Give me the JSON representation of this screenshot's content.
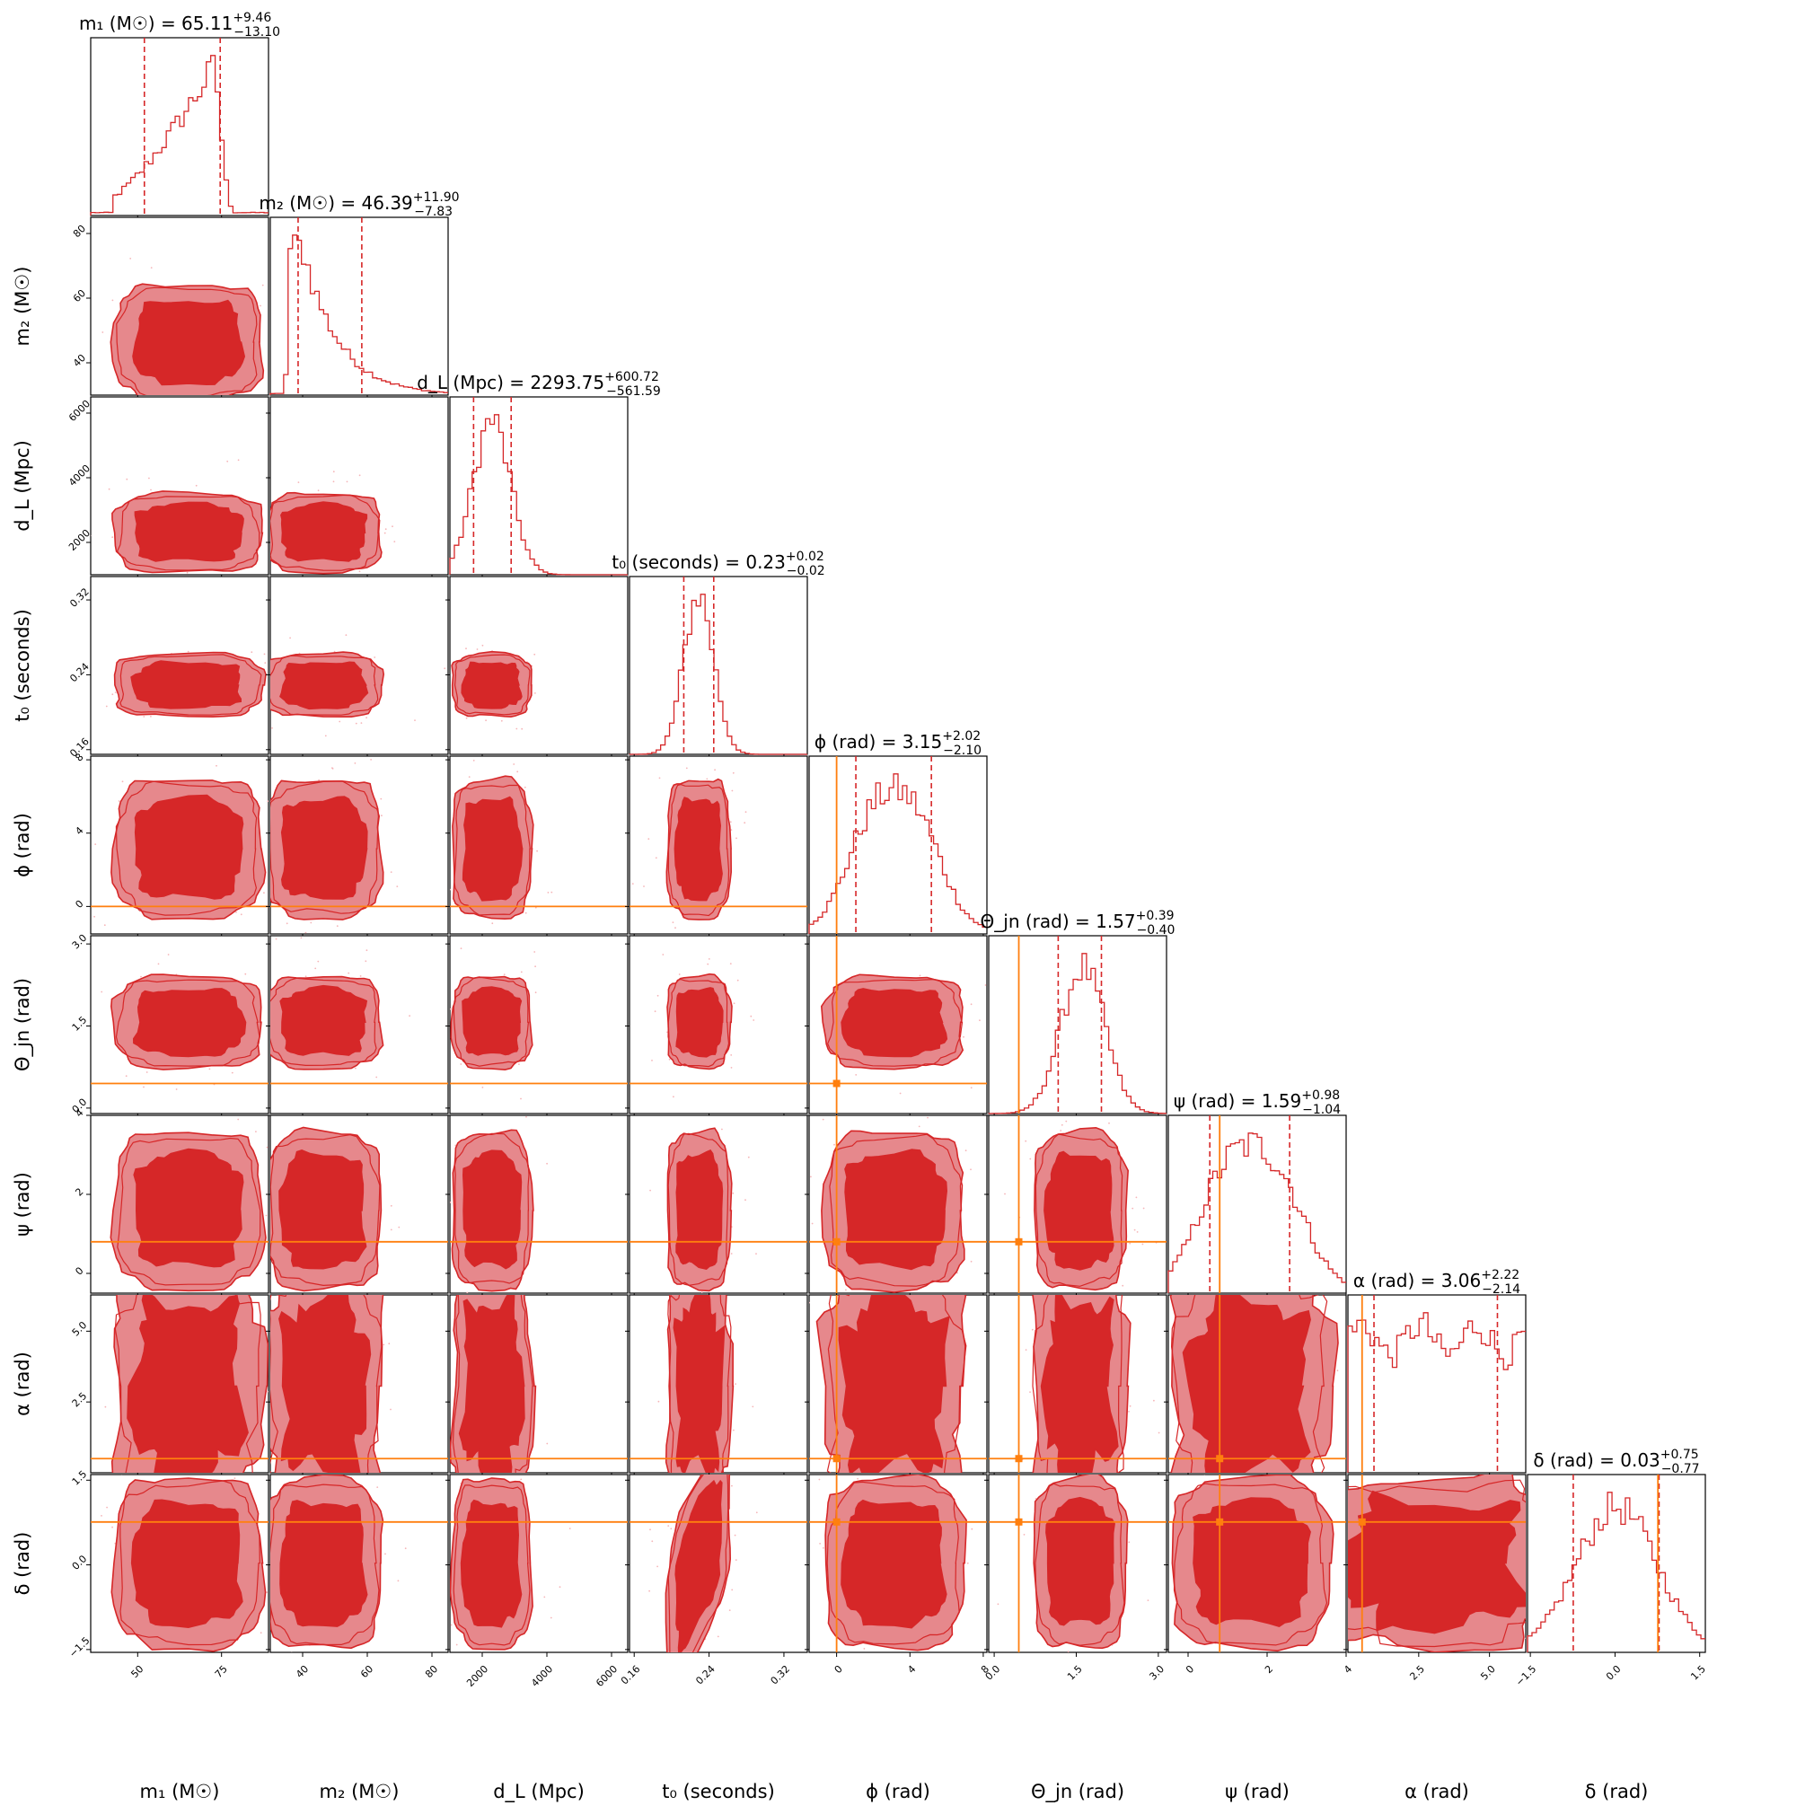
{
  "chart_data": {
    "type": "corner",
    "colors": {
      "posterior": "#d62728",
      "contour_fill_inner": "#d62728",
      "contour_fill_outer": "#e6888c",
      "scatter": "#f5b5b8",
      "hist_line": "#d62728",
      "quantile_line": "#d62728",
      "truth": "#ff7f0e"
    },
    "grid": false,
    "parameters": [
      {
        "key": "m1",
        "axis_label": "m₁ (M☉)",
        "title": {
          "prefix": "m₁ (M☉) = ",
          "value": "65.11",
          "plus": "+9.46",
          "minus": "−13.10"
        },
        "range": [
          36,
          89
        ],
        "ticks": [
          50,
          75
        ],
        "tick_labels": [
          "50",
          "75"
        ],
        "quantiles": [
          52.0,
          74.6
        ],
        "median": 65.11,
        "sigma": 10.5,
        "truth": null,
        "hist_shape": "rising",
        "hist_peak": 72.5
      },
      {
        "key": "m2",
        "axis_label": "m₂ (M☉)",
        "title": {
          "prefix": "m₂ (M☉) = ",
          "value": "46.39",
          "plus": "+11.90",
          "minus": "−7.83"
        },
        "range": [
          30,
          85
        ],
        "ticks": [
          40,
          60,
          80
        ],
        "tick_labels": [
          "40",
          "60",
          "80"
        ],
        "quantiles": [
          38.6,
          58.3
        ],
        "median": 46.39,
        "sigma": 8.5,
        "truth": null,
        "hist_shape": "skew",
        "hist_peak": 39.5
      },
      {
        "key": "dL",
        "axis_label": "d_L (Mpc)",
        "title": {
          "prefix": "d_L (Mpc) = ",
          "value": "2293.75",
          "plus": "+600.72",
          "minus": "−561.59"
        },
        "range": [
          1000,
          6500
        ],
        "ticks": [
          2000,
          4000,
          6000
        ],
        "tick_labels": [
          "2000",
          "4000",
          "6000"
        ],
        "quantiles": [
          1732.2,
          2894.5
        ],
        "median": 2293.75,
        "sigma": 580,
        "truth": null,
        "hist_shape": "normal",
        "hist_peak": 2293.75
      },
      {
        "key": "t0",
        "axis_label": "t₀ (seconds)",
        "title": {
          "prefix": "t₀ (seconds) = ",
          "value": "0.23",
          "plus": "+0.02",
          "minus": "−0.02"
        },
        "range": [
          0.155,
          0.345
        ],
        "ticks": [
          0.16,
          0.24,
          0.32
        ],
        "tick_labels": [
          "0.16",
          "0.24",
          "0.32"
        ],
        "quantiles": [
          0.213,
          0.245
        ],
        "median": 0.229,
        "sigma": 0.016,
        "truth": null,
        "hist_shape": "normal",
        "hist_peak": 0.229
      },
      {
        "key": "phi",
        "axis_label": "ϕ (rad)",
        "title": {
          "prefix": "ϕ (rad) = ",
          "value": "3.15",
          "plus": "+2.02",
          "minus": "−2.10"
        },
        "range": [
          -1.5,
          8.2
        ],
        "ticks": [
          0,
          4,
          8
        ],
        "tick_labels": [
          "0",
          "4",
          "8"
        ],
        "quantiles": [
          1.05,
          5.17
        ],
        "median": 3.15,
        "sigma": 1.8,
        "truth": 0.0,
        "hist_shape": "flat",
        "hist_peak": 3.15
      },
      {
        "key": "thetajn",
        "axis_label": "Θ_jn (rad)",
        "title": {
          "prefix": "Θ_jn (rad) = ",
          "value": "1.57",
          "plus": "+0.39",
          "minus": "−0.40"
        },
        "range": [
          -0.1,
          3.15
        ],
        "ticks": [
          0.0,
          1.5,
          3.0
        ],
        "tick_labels": [
          "0.0",
          "1.5",
          "3.0"
        ],
        "quantiles": [
          1.17,
          1.96
        ],
        "median": 1.57,
        "sigma": 0.4,
        "truth": 0.45,
        "hist_shape": "normal",
        "hist_peak": 1.62
      },
      {
        "key": "psi",
        "axis_label": "ψ (rad)",
        "title": {
          "prefix": "ψ (rad) = ",
          "value": "1.59",
          "plus": "+0.98",
          "minus": "−1.04"
        },
        "range": [
          -0.5,
          4.0
        ],
        "ticks": [
          0,
          2,
          4
        ],
        "tick_labels": [
          "0",
          "2",
          "4"
        ],
        "quantiles": [
          0.55,
          2.57
        ],
        "median": 1.59,
        "sigma": 0.95,
        "truth": 0.8,
        "hist_shape": "flat",
        "hist_peak": 1.59
      },
      {
        "key": "alpha",
        "axis_label": "α (rad)",
        "title": {
          "prefix": "α (rad) = ",
          "value": "3.06",
          "plus": "+2.22",
          "minus": "−2.14"
        },
        "range": [
          0.0,
          6.28
        ],
        "ticks": [
          2.5,
          5.0
        ],
        "tick_labels": [
          "2.5",
          "5.0"
        ],
        "quantiles": [
          0.92,
          5.28
        ],
        "median": 3.06,
        "sigma": 2.0,
        "truth": 0.5,
        "hist_shape": "uniform",
        "hist_peak": 3.06
      },
      {
        "key": "delta",
        "axis_label": "δ (rad)",
        "title": {
          "prefix": "δ (rad) = ",
          "value": "0.03",
          "plus": "+0.75",
          "minus": "−0.77"
        },
        "range": [
          -1.55,
          1.6
        ],
        "ticks": [
          -1.5,
          0.0,
          1.5
        ],
        "tick_labels": [
          "−1.5",
          "0.0",
          "1.5"
        ],
        "quantiles": [
          -0.74,
          0.78
        ],
        "median": 0.03,
        "sigma": 0.72,
        "truth": 0.76,
        "hist_shape": "normal",
        "hist_peak": 0.03
      }
    ]
  }
}
